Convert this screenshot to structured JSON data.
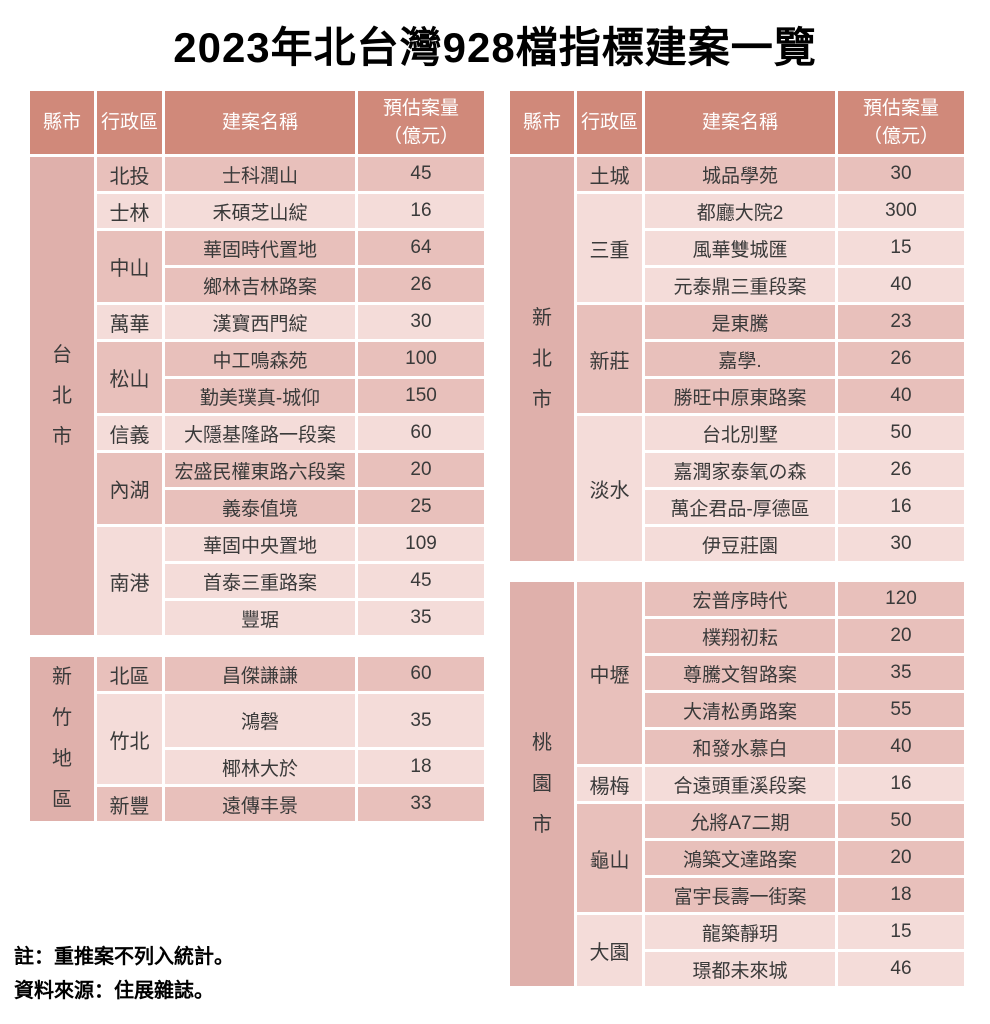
{
  "page": {
    "title": "2023年北台灣928檔指標建案一覽",
    "notes": [
      "註：重推案不列入統計。",
      "資料來源：住展雜誌。"
    ]
  },
  "table_header": {
    "county": "縣市",
    "district": "行政區",
    "project": "建案名稱",
    "volume_line1": "預估案量",
    "volume_line2": "（億元）"
  },
  "colors": {
    "header_bg": "#d0897a",
    "header_text": "#ffffff",
    "county_bg": "#dfb0ab",
    "group_dark_bg": "#e8c0bb",
    "group_light_bg": "#f4dcd9",
    "body_text": "#3a3a3a",
    "grid_line": "#ffffff"
  },
  "chart_data": {
    "type": "table",
    "title": "2023年北台灣928檔指標建案一覽",
    "columns": [
      "縣市",
      "行政區",
      "建案名稱",
      "預估案量（億元）"
    ],
    "blocks": [
      {
        "id": "taipei",
        "county": "台北市",
        "show_header": true,
        "groups": [
          {
            "district": "北投",
            "projects": [
              {
                "name": "士科潤山",
                "volume": 45
              }
            ]
          },
          {
            "district": "士林",
            "projects": [
              {
                "name": "禾碩芝山綻",
                "volume": 16
              }
            ]
          },
          {
            "district": "中山",
            "projects": [
              {
                "name": "華固時代置地",
                "volume": 64
              },
              {
                "name": "鄉林吉林路案",
                "volume": 26
              }
            ]
          },
          {
            "district": "萬華",
            "projects": [
              {
                "name": "漢寶西門綻",
                "volume": 30
              }
            ]
          },
          {
            "district": "松山",
            "projects": [
              {
                "name": "中工鳴森苑",
                "volume": 100
              },
              {
                "name": "勤美璞真-城仰",
                "volume": 150
              }
            ]
          },
          {
            "district": "信義",
            "projects": [
              {
                "name": "大隱基隆路一段案",
                "volume": 60
              }
            ]
          },
          {
            "district": "內湖",
            "projects": [
              {
                "name": "宏盛民權東路六段案",
                "volume": 20
              },
              {
                "name": "義泰值境",
                "volume": 25
              }
            ]
          },
          {
            "district": "南港",
            "projects": [
              {
                "name": "華固中央置地",
                "volume": 109
              },
              {
                "name": "首泰三重路案",
                "volume": 45
              },
              {
                "name": "豐琚",
                "volume": 35
              }
            ]
          }
        ]
      },
      {
        "id": "hsinchu",
        "county": "新竹地區",
        "show_header": false,
        "groups": [
          {
            "district": "北區",
            "projects": [
              {
                "name": "昌傑謙謙",
                "volume": 60
              }
            ]
          },
          {
            "district": "竹北",
            "projects": [
              {
                "name": "鴻磬",
                "volume": 35
              },
              {
                "name": "椰林大於",
                "volume": 18
              }
            ]
          },
          {
            "district": "新豐",
            "projects": [
              {
                "name": "遠傳丰景",
                "volume": 33
              }
            ]
          }
        ]
      },
      {
        "id": "newtaipei",
        "county": "新北市",
        "show_header": true,
        "groups": [
          {
            "district": "土城",
            "projects": [
              {
                "name": "城品學苑",
                "volume": 30
              }
            ]
          },
          {
            "district": "三重",
            "projects": [
              {
                "name": "都廳大院2",
                "volume": 300
              },
              {
                "name": "風華雙城匯",
                "volume": 15
              },
              {
                "name": "元泰鼎三重段案",
                "volume": 40
              }
            ]
          },
          {
            "district": "新莊",
            "projects": [
              {
                "name": "是東騰",
                "volume": 23
              },
              {
                "name": "嘉學.",
                "volume": 26
              },
              {
                "name": "勝旺中原東路案",
                "volume": 40
              }
            ]
          },
          {
            "district": "淡水",
            "projects": [
              {
                "name": "台北別墅",
                "volume": 50
              },
              {
                "name": "嘉潤家泰氧の森",
                "volume": 26
              },
              {
                "name": "萬企君品-厚德區",
                "volume": 16
              },
              {
                "name": "伊豆莊園",
                "volume": 30
              }
            ]
          }
        ]
      },
      {
        "id": "taoyuan",
        "county": "桃園市",
        "show_header": false,
        "groups": [
          {
            "district": "中壢",
            "projects": [
              {
                "name": "宏普序時代",
                "volume": 120
              },
              {
                "name": "樸翔初耘",
                "volume": 20
              },
              {
                "name": "尊騰文智路案",
                "volume": 35
              },
              {
                "name": "大清松勇路案",
                "volume": 55
              },
              {
                "name": "和發水慕白",
                "volume": 40
              }
            ]
          },
          {
            "district": "楊梅",
            "projects": [
              {
                "name": "合遠頭重溪段案",
                "volume": 16
              }
            ]
          },
          {
            "district": "龜山",
            "projects": [
              {
                "name": "允將A7二期",
                "volume": 50
              },
              {
                "name": "鴻築文達路案",
                "volume": 20
              },
              {
                "name": "富宇長壽一街案",
                "volume": 18
              }
            ]
          },
          {
            "district": "大園",
            "projects": [
              {
                "name": "龍築靜玥",
                "volume": 15
              },
              {
                "name": "璟都未來城",
                "volume": 46
              }
            ]
          }
        ]
      }
    ]
  }
}
